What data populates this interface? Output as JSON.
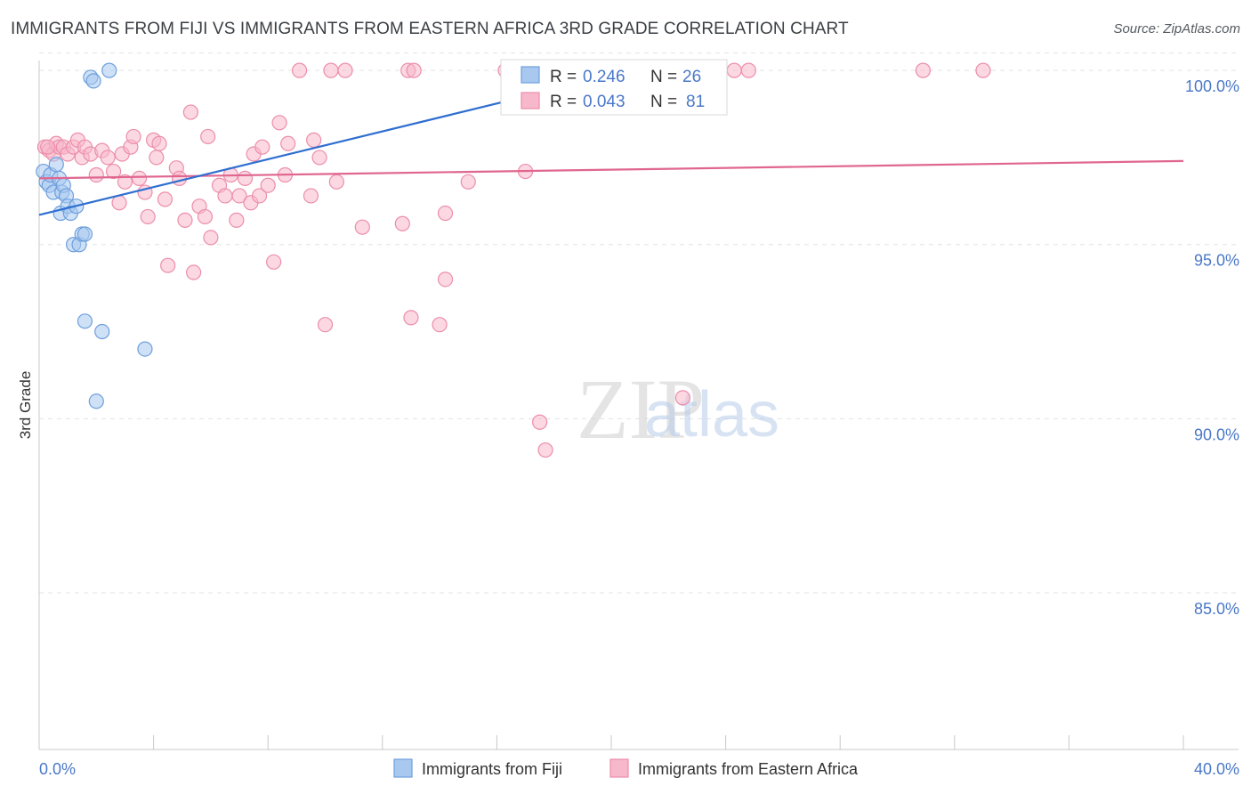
{
  "title": "IMMIGRANTS FROM FIJI VS IMMIGRANTS FROM EASTERN AFRICA 3RD GRADE CORRELATION CHART",
  "source": "Source: ZipAtlas.com",
  "watermark": {
    "zip": "ZIP",
    "atlas": "atlas"
  },
  "colors": {
    "fiji_fill": "#a8c8f0",
    "fiji_stroke": "#6e9fdc",
    "fiji_line": "#2f6fd0",
    "ea_fill": "#f7b8cb",
    "ea_stroke": "#ec8eaa",
    "ea_line": "#e0668f",
    "axis_text": "#4a78c8",
    "grid": "#e3e3e3"
  },
  "chart_data": {
    "type": "scatter",
    "ylabel": "3rd Grade",
    "xlim": [
      0,
      40
    ],
    "ylim": [
      80.5,
      101.0
    ],
    "x_tick_labels": [
      "0.0%",
      "40.0%"
    ],
    "y_ticks": [
      85,
      90,
      95,
      100
    ],
    "y_tick_labels": [
      "85.0%",
      "90.0%",
      "95.0%",
      "100.0%"
    ],
    "grid": true,
    "legend": {
      "placement": "top-center",
      "entries": [
        {
          "r_label": "R =",
          "r_value": "0.246",
          "n_label": "N =",
          "n_value": "26"
        },
        {
          "r_label": "R =",
          "r_value": "0.043",
          "n_label": "N =",
          "n_value": "81"
        }
      ]
    },
    "series": [
      {
        "name": "Immigrants from Fiji",
        "trend": {
          "x": [
            0.0,
            20.5
          ],
          "y": [
            95.85,
            99.95
          ]
        },
        "points": [
          [
            0.15,
            97.1
          ],
          [
            0.25,
            96.8
          ],
          [
            0.35,
            96.7
          ],
          [
            0.4,
            97.0
          ],
          [
            0.5,
            96.5
          ],
          [
            0.6,
            97.3
          ],
          [
            0.7,
            96.9
          ],
          [
            0.75,
            95.9
          ],
          [
            0.8,
            96.5
          ],
          [
            0.85,
            96.7
          ],
          [
            0.95,
            96.4
          ],
          [
            1.0,
            96.1
          ],
          [
            1.1,
            95.9
          ],
          [
            1.2,
            95.0
          ],
          [
            1.3,
            96.1
          ],
          [
            1.4,
            95.0
          ],
          [
            1.5,
            95.3
          ],
          [
            1.6,
            95.3
          ],
          [
            1.6,
            92.8
          ],
          [
            1.8,
            99.8
          ],
          [
            1.9,
            99.7
          ],
          [
            2.0,
            90.5
          ],
          [
            2.2,
            92.5
          ],
          [
            2.45,
            100.0
          ],
          [
            3.7,
            92.0
          ],
          [
            20.5,
            100.0
          ]
        ]
      },
      {
        "name": "Immigrants from Eastern Africa",
        "trend": {
          "x": [
            0.0,
            40.0
          ],
          "y": [
            96.9,
            97.4
          ]
        },
        "points": [
          [
            0.2,
            97.8
          ],
          [
            0.35,
            97.7
          ],
          [
            0.5,
            97.6
          ],
          [
            0.6,
            97.9
          ],
          [
            0.7,
            97.8
          ],
          [
            0.85,
            97.8
          ],
          [
            1.0,
            97.6
          ],
          [
            1.2,
            97.8
          ],
          [
            1.35,
            98.0
          ],
          [
            1.5,
            97.5
          ],
          [
            1.6,
            97.8
          ],
          [
            1.8,
            97.6
          ],
          [
            2.0,
            97.0
          ],
          [
            2.2,
            97.7
          ],
          [
            2.4,
            97.5
          ],
          [
            2.6,
            97.1
          ],
          [
            2.8,
            96.2
          ],
          [
            2.9,
            97.6
          ],
          [
            3.0,
            96.8
          ],
          [
            3.2,
            97.8
          ],
          [
            3.3,
            98.1
          ],
          [
            3.5,
            96.9
          ],
          [
            3.7,
            96.5
          ],
          [
            3.8,
            95.8
          ],
          [
            4.0,
            98.0
          ],
          [
            4.1,
            97.5
          ],
          [
            4.2,
            97.9
          ],
          [
            4.4,
            96.3
          ],
          [
            4.5,
            94.4
          ],
          [
            4.8,
            97.2
          ],
          [
            4.9,
            96.9
          ],
          [
            5.1,
            95.7
          ],
          [
            5.3,
            98.8
          ],
          [
            5.4,
            94.2
          ],
          [
            5.6,
            96.1
          ],
          [
            5.8,
            95.8
          ],
          [
            5.9,
            98.1
          ],
          [
            6.0,
            95.2
          ],
          [
            6.3,
            96.7
          ],
          [
            6.5,
            96.4
          ],
          [
            6.7,
            97.0
          ],
          [
            6.9,
            95.7
          ],
          [
            7.0,
            96.4
          ],
          [
            7.2,
            96.9
          ],
          [
            7.4,
            96.2
          ],
          [
            7.5,
            97.6
          ],
          [
            7.7,
            96.4
          ],
          [
            7.8,
            97.8
          ],
          [
            8.0,
            96.7
          ],
          [
            8.2,
            94.5
          ],
          [
            8.4,
            98.5
          ],
          [
            8.6,
            97.0
          ],
          [
            8.7,
            97.9
          ],
          [
            9.1,
            100.0
          ],
          [
            9.5,
            96.4
          ],
          [
            9.6,
            98.0
          ],
          [
            9.8,
            97.5
          ],
          [
            10.0,
            92.7
          ],
          [
            10.2,
            100.0
          ],
          [
            10.4,
            96.8
          ],
          [
            10.7,
            100.0
          ],
          [
            11.3,
            95.5
          ],
          [
            12.7,
            95.6
          ],
          [
            12.9,
            100.0
          ],
          [
            13.0,
            92.9
          ],
          [
            13.1,
            100.0
          ],
          [
            14.0,
            92.7
          ],
          [
            14.2,
            95.9
          ],
          [
            14.2,
            94.0
          ],
          [
            15.0,
            96.8
          ],
          [
            16.3,
            100.0
          ],
          [
            17.0,
            97.1
          ],
          [
            17.5,
            89.9
          ],
          [
            17.7,
            89.1
          ],
          [
            22.5,
            90.6
          ],
          [
            23.3,
            100.0
          ],
          [
            24.3,
            100.0
          ],
          [
            24.8,
            100.0
          ],
          [
            30.9,
            100.0
          ],
          [
            33.0,
            100.0
          ],
          [
            0.3,
            97.8
          ]
        ]
      }
    ]
  }
}
